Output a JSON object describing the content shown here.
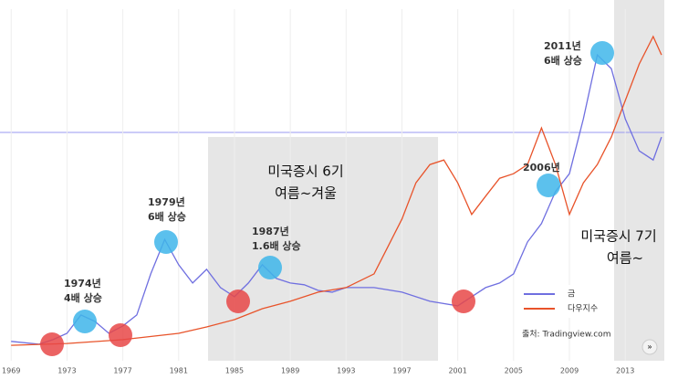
{
  "chart_data": {
    "type": "line",
    "xlim": [
      1968.2,
      2015.8
    ],
    "ylim": [
      0,
      100
    ],
    "grid": true,
    "xticks": [
      1969,
      1973,
      1977,
      1981,
      1985,
      1989,
      1993,
      1997,
      2001,
      2005,
      2009,
      2013
    ],
    "series": [
      {
        "name": "금",
        "color": "#6f6fe0",
        "x": [
          1969,
          1971,
          1972,
          1973,
          1974,
          1975,
          1976,
          1977,
          1978,
          1979,
          1980,
          1981,
          1982,
          1983,
          1984,
          1985,
          1986,
          1987,
          1988,
          1989,
          1990,
          1991,
          1992,
          1993,
          1995,
          1997,
          1999,
          2001,
          2002,
          2003,
          2004,
          2005,
          2006,
          2007,
          2008,
          2009,
          2010,
          2011,
          2012,
          2013,
          2014,
          2015,
          2015.6
        ],
        "values": [
          5.5,
          4.7,
          6,
          7.8,
          13,
          11.2,
          7.8,
          9.9,
          13,
          24.7,
          34.5,
          27.3,
          22.1,
          26,
          20.8,
          18.2,
          22.1,
          27.3,
          23.4,
          22.1,
          21.6,
          20,
          19.5,
          20.8,
          20.8,
          19.5,
          16.9,
          15.6,
          18.2,
          20.8,
          22.1,
          24.7,
          33.8,
          39,
          48.1,
          53.2,
          68.8,
          87,
          83.1,
          68.8,
          59.7,
          57.1,
          63.6
        ]
      },
      {
        "name": "다우지수",
        "color": "#e8532a",
        "x": [
          1969,
          1973,
          1977,
          1981,
          1983,
          1985,
          1987,
          1989,
          1991,
          1993,
          1995,
          1996,
          1997,
          1998,
          1999,
          2000,
          2001,
          2002,
          2003,
          2004,
          2005,
          2006,
          2007,
          2008,
          2009,
          2010,
          2011,
          2012,
          2013,
          2014,
          2015,
          2015.6
        ],
        "values": [
          4.4,
          4.9,
          6,
          7.8,
          9.6,
          11.7,
          14.8,
          16.9,
          19.5,
          20.8,
          24.7,
          32.5,
          40.3,
          50.6,
          55.8,
          57.1,
          50.6,
          41.6,
          46.8,
          51.9,
          53.2,
          55.8,
          66.2,
          55.8,
          41.6,
          50.6,
          55.8,
          63.6,
          74,
          84.4,
          92.2,
          87
        ]
      }
    ],
    "annotations": {
      "a1974": [
        "1974년",
        "4배 상승"
      ],
      "a1979": [
        "1979년",
        "6배 상승"
      ],
      "a1987": [
        "1987년",
        "1.6배 상승"
      ],
      "a2006": [
        "2006년"
      ],
      "a2011": [
        "2011년",
        "6배 상승"
      ],
      "cycle6": [
        "미국증시 6기",
        "여름~겨울"
      ],
      "cycle7": [
        "미국증시 7기",
        "여름~"
      ]
    },
    "source": "출처: Tradingview.com"
  }
}
